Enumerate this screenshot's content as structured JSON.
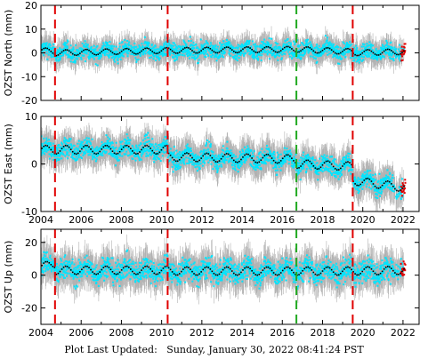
{
  "footer": {
    "label": "Plot Last Updated:",
    "timestamp": "Sunday, January 30, 2022 08:41:24 PST"
  },
  "colors": {
    "data_points": "#00e5ff",
    "error_bars": "#aaaaaa",
    "model": "#000000",
    "recent_points": "#e00000",
    "break_red": "#e00000",
    "break_green": "#22aa22"
  },
  "chart_data": [
    {
      "type": "scatter",
      "panel": "north",
      "ylabel": "OZST North (mm)",
      "xlim": [
        2004.0,
        2022.8
      ],
      "ylim": [
        -20,
        20
      ],
      "yticks": [
        -20,
        -10,
        0,
        10,
        20
      ],
      "xticks": [
        2004,
        2006,
        2008,
        2010,
        2012,
        2014,
        2016,
        2018,
        2020,
        2022
      ],
      "show_xtick_labels": false,
      "offsets": [
        {
          "x": 2004.7,
          "color": "red"
        },
        {
          "x": 2010.3,
          "color": "red"
        },
        {
          "x": 2016.7,
          "color": "green"
        },
        {
          "x": 2019.5,
          "color": "red"
        }
      ],
      "model": {
        "x": [
          2004.0,
          2004.7,
          2004.71,
          2010.3,
          2010.31,
          2016.7,
          2016.71,
          2019.5,
          2019.51,
          2022.1
        ],
        "y": [
          1.0,
          0.5,
          0.0,
          1.0,
          1.0,
          1.5,
          1.5,
          0.5,
          0.0,
          0.5
        ],
        "seasonal_amplitude": 1.2
      },
      "scatter_spread": 3.5,
      "error_bar": 4.0
    },
    {
      "type": "scatter",
      "panel": "east",
      "ylabel": "OZST East (mm)",
      "xlim": [
        2004.0,
        2022.8
      ],
      "ylim": [
        -10,
        10
      ],
      "yticks": [
        -10,
        0,
        10
      ],
      "xticks": [
        2004,
        2006,
        2008,
        2010,
        2012,
        2014,
        2016,
        2018,
        2020,
        2022
      ],
      "show_xtick_labels": true,
      "offsets": [
        {
          "x": 2004.7,
          "color": "red"
        },
        {
          "x": 2010.3,
          "color": "red"
        },
        {
          "x": 2016.7,
          "color": "green"
        },
        {
          "x": 2019.5,
          "color": "red"
        }
      ],
      "model": {
        "x": [
          2004.0,
          2004.7,
          2004.71,
          2010.3,
          2010.31,
          2016.7,
          2016.71,
          2019.5,
          2019.51,
          2022.1
        ],
        "y": [
          3.0,
          3.0,
          3.0,
          3.0,
          1.5,
          1.0,
          0.0,
          -0.5,
          -3.5,
          -5.0
        ],
        "seasonal_amplitude": 0.9
      },
      "scatter_spread": 2.0,
      "error_bar": 2.5
    },
    {
      "type": "scatter",
      "panel": "up",
      "ylabel": "OZST Up (mm)",
      "xlim": [
        2004.0,
        2022.8
      ],
      "ylim": [
        -30,
        28
      ],
      "yticks": [
        -20,
        0,
        20
      ],
      "xticks": [
        2004,
        2006,
        2008,
        2010,
        2012,
        2014,
        2016,
        2018,
        2020,
        2022
      ],
      "show_xtick_labels": true,
      "offsets": [
        {
          "x": 2004.7,
          "color": "red"
        },
        {
          "x": 2010.3,
          "color": "red"
        },
        {
          "x": 2016.7,
          "color": "green"
        },
        {
          "x": 2019.5,
          "color": "red"
        }
      ],
      "model": {
        "x": [
          2004.0,
          2004.7,
          2004.71,
          2010.3,
          2010.31,
          2016.7,
          2016.71,
          2019.5,
          2019.51,
          2022.1
        ],
        "y": [
          5.0,
          7.0,
          3.0,
          3.0,
          2.5,
          2.5,
          2.5,
          2.5,
          2.5,
          3.0
        ],
        "seasonal_amplitude": 2.5
      },
      "scatter_spread": 7.0,
      "error_bar": 8.0
    }
  ]
}
